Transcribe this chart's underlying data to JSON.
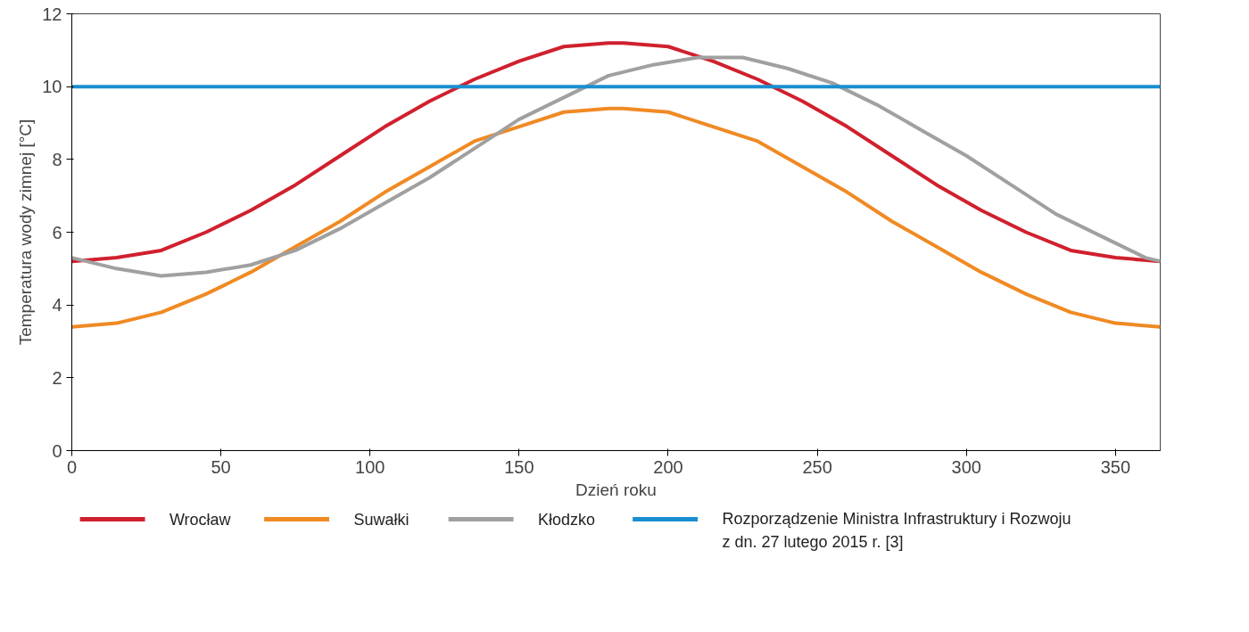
{
  "chart_data": {
    "type": "line",
    "xlabel": "Dzień roku",
    "ylabel": "Temperatura wody zimnej [°C]",
    "x": [
      0,
      15,
      30,
      45,
      60,
      75,
      90,
      105,
      120,
      135,
      150,
      165,
      180,
      185,
      200,
      215,
      230,
      245,
      260,
      275,
      290,
      305,
      320,
      335,
      350,
      365
    ],
    "series": [
      {
        "name": "Wrocław",
        "color": "#d0202e",
        "values": [
          5.2,
          5.3,
          5.5,
          6.0,
          6.6,
          7.3,
          8.1,
          8.9,
          9.6,
          10.2,
          10.7,
          11.1,
          11.2,
          11.2,
          11.1,
          10.7,
          10.2,
          9.6,
          8.9,
          8.1,
          7.3,
          6.6,
          6.0,
          5.5,
          5.3,
          5.2
        ]
      },
      {
        "name": "Suwałki",
        "color": "#f08a24",
        "values": [
          3.4,
          3.5,
          3.8,
          4.3,
          4.9,
          5.6,
          6.3,
          7.1,
          7.8,
          8.5,
          8.9,
          9.3,
          9.4,
          9.4,
          9.3,
          8.9,
          8.5,
          7.8,
          7.1,
          6.3,
          5.6,
          4.9,
          4.3,
          3.8,
          3.5,
          3.4
        ]
      },
      {
        "name": "Kłodzko",
        "color": "#a0a0a0",
        "x": [
          0,
          15,
          30,
          45,
          60,
          75,
          90,
          105,
          120,
          135,
          150,
          165,
          180,
          195,
          210,
          225,
          240,
          255,
          270,
          285,
          300,
          315,
          330,
          345,
          360,
          365
        ],
        "values": [
          5.3,
          5.0,
          4.8,
          4.9,
          5.1,
          5.5,
          6.1,
          6.8,
          7.5,
          8.3,
          9.1,
          9.7,
          10.3,
          10.6,
          10.8,
          10.8,
          10.5,
          10.1,
          9.5,
          8.8,
          8.1,
          7.3,
          6.5,
          5.9,
          5.3,
          5.2
        ]
      },
      {
        "name": "Rozporządzenie Ministra Infrastruktury i Rozwoju\nz dn. 27 lutego 2015 r. [3]",
        "color": "#1a8fd0",
        "x": [
          0,
          365
        ],
        "values": [
          10,
          10
        ]
      }
    ],
    "xlim": [
      0,
      365
    ],
    "xticks": [
      0,
      50,
      100,
      150,
      200,
      250,
      300,
      350
    ],
    "ylim": [
      0,
      12
    ],
    "yticks": [
      0,
      2,
      4,
      6,
      8,
      10,
      12
    ],
    "grid": false,
    "legend": "bottom",
    "line_style": "solid",
    "marker": "none"
  }
}
